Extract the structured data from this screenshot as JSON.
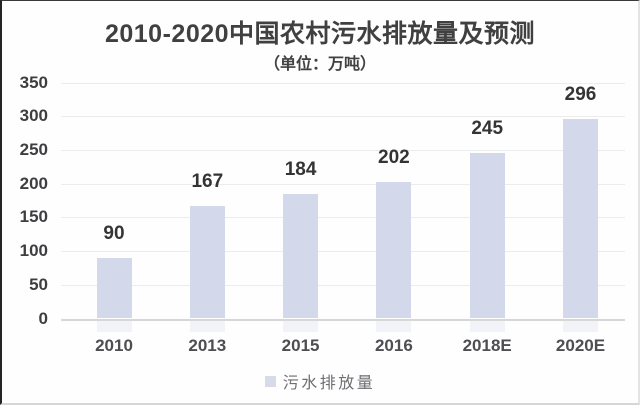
{
  "chart_data": {
    "type": "bar",
    "title": "2010-2020中国农村污水排放量及预测",
    "subtitle": "（单位：万吨）",
    "categories": [
      "2010",
      "2013",
      "2015",
      "2016",
      "2018E",
      "2020E"
    ],
    "values": [
      90,
      167,
      184,
      202,
      245,
      296
    ],
    "series_name": "污水排放量",
    "legend": [
      "污水排放量"
    ],
    "legend_position": "bottom",
    "xlabel": "",
    "ylabel": "",
    "ylim": [
      0,
      350
    ],
    "yticks": [
      0,
      50,
      100,
      150,
      200,
      250,
      300,
      350
    ],
    "grid": true,
    "data_labels_shown": true
  },
  "colors": {
    "bar_fill": "#d3d9ea",
    "legend_swatch": "#d6dbe7",
    "gridline": "#ececec",
    "axis_line": "#d7d7d7",
    "title_text": "#404040",
    "value_label_text": "#343434",
    "axis_tick_text": "#4d4d52"
  }
}
